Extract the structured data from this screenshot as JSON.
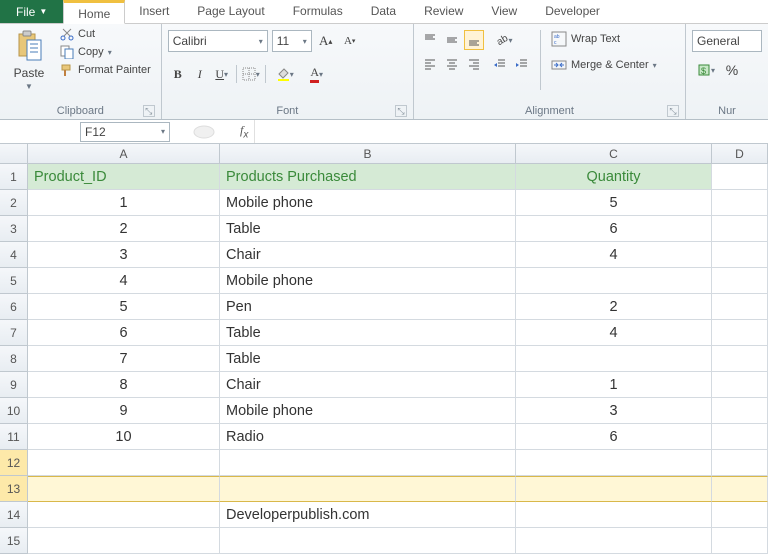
{
  "tabs": {
    "file": "File",
    "items": [
      "Home",
      "Insert",
      "Page Layout",
      "Formulas",
      "Data",
      "Review",
      "View",
      "Developer"
    ],
    "active": 0
  },
  "ribbon": {
    "clipboard": {
      "label": "Clipboard",
      "paste": "Paste",
      "cut": "Cut",
      "copy": "Copy",
      "format_painter": "Format Painter"
    },
    "font": {
      "label": "Font",
      "name": "Calibri",
      "size": "11"
    },
    "align": {
      "label": "Alignment",
      "wrap": "Wrap Text",
      "merge": "Merge & Center"
    },
    "number": {
      "label": "Nur",
      "format": "General",
      "percent": "%"
    }
  },
  "namebox": "F12",
  "sheet": {
    "columns": [
      "A",
      "B",
      "C",
      "D"
    ],
    "header_row": [
      "Product_ID",
      "Products Purchased",
      "Quantity"
    ],
    "rows": [
      [
        "1",
        "Mobile phone",
        "5"
      ],
      [
        "2",
        "Table",
        "6"
      ],
      [
        "3",
        "Chair",
        "4"
      ],
      [
        "4",
        "Mobile phone",
        ""
      ],
      [
        "5",
        "Pen",
        "2"
      ],
      [
        "6",
        "Table",
        "4"
      ],
      [
        "7",
        "Table",
        ""
      ],
      [
        "8",
        "Chair",
        "1"
      ],
      [
        "9",
        "Mobile phone",
        "3"
      ],
      [
        "10",
        "Radio",
        "6"
      ]
    ],
    "watermark": "Developerpublish.com",
    "selected_row": 13,
    "active_row": 12,
    "header_bg": "#d5ead5",
    "header_fg": "#3a8a3a"
  }
}
